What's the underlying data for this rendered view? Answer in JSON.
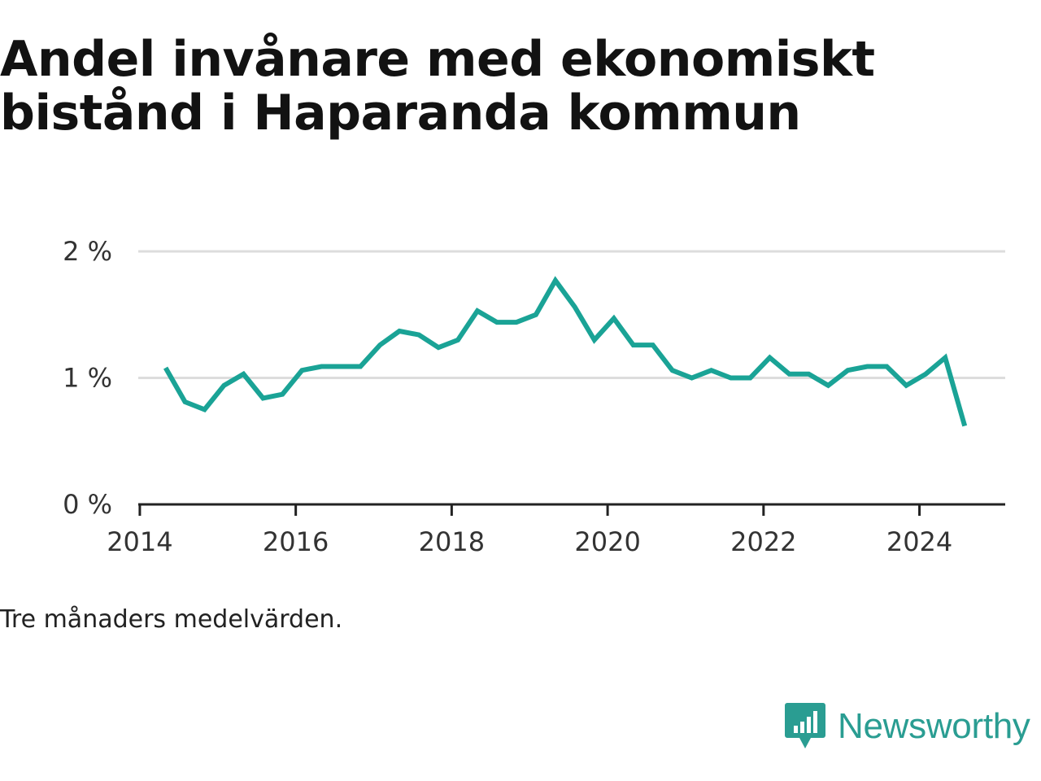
{
  "title": "Andel invånare med ekonomiskt bistånd i Haparanda kommun",
  "note": "Tre månaders medelvärden.",
  "brand": {
    "name": "Newsworthy",
    "icon": "newsworthy-logo-icon",
    "color": "#2a9d92"
  },
  "colors": {
    "line": "#1aa396",
    "grid": "#dddddd",
    "axis": "#222222",
    "tick_text": "#333333"
  },
  "chart_data": {
    "type": "line",
    "title": "Andel invånare med ekonomiskt bistånd i Haparanda kommun",
    "xlabel": "",
    "ylabel": "",
    "xlim": [
      2013.98,
      2025.1
    ],
    "ylim": [
      0,
      2
    ],
    "grid": true,
    "x_ticks": [
      2014,
      2016,
      2018,
      2020,
      2022,
      2024
    ],
    "y_ticks": [
      {
        "value": 0,
        "label": "0 %"
      },
      {
        "value": 1,
        "label": "1 %"
      },
      {
        "value": 2,
        "label": "2 %"
      }
    ],
    "series": [
      {
        "x": [
          2014.33,
          2014.58,
          2014.83,
          2015.08,
          2015.33,
          2015.58,
          2015.83,
          2016.08,
          2016.33,
          2016.58,
          2016.83,
          2017.08,
          2017.33,
          2017.58,
          2017.83,
          2018.08,
          2018.33,
          2018.58,
          2018.83,
          2019.08,
          2019.33,
          2019.58,
          2019.83,
          2020.08,
          2020.33,
          2020.58,
          2020.83,
          2021.08,
          2021.33,
          2021.58,
          2021.83,
          2022.08,
          2022.33,
          2022.58,
          2022.83,
          2023.08,
          2023.33,
          2023.58,
          2023.83,
          2024.08,
          2024.33,
          2024.58
        ],
        "y": [
          1.08,
          0.81,
          0.75,
          0.94,
          1.03,
          0.84,
          0.87,
          1.06,
          1.09,
          1.09,
          1.09,
          1.26,
          1.37,
          1.34,
          1.24,
          1.3,
          1.53,
          1.44,
          1.44,
          1.5,
          1.77,
          1.56,
          1.3,
          1.47,
          1.26,
          1.26,
          1.06,
          1.0,
          1.06,
          1.0,
          1.0,
          1.16,
          1.03,
          1.03,
          0.94,
          1.06,
          1.09,
          1.09,
          0.94,
          1.03,
          1.16,
          0.62
        ]
      }
    ]
  }
}
